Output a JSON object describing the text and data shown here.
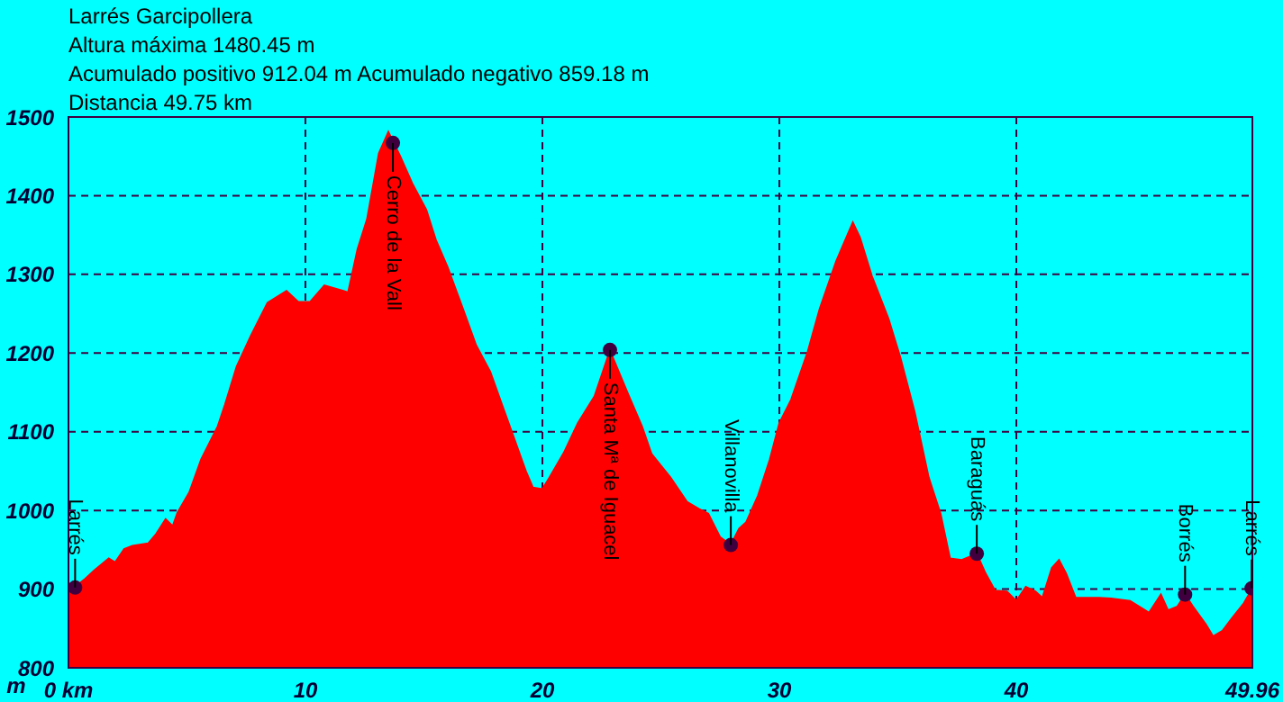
{
  "chart_data": {
    "type": "area",
    "title": "Larrés Garcipollera",
    "annotations": [
      "Altura máxima 1480.45 m",
      "Acumulado positivo 912.04 m Acumulado negativo 859.18 m",
      "Distancia 49.75 km",
      {
        "text": "Larrés",
        "x": 0.28,
        "y": 902
      },
      {
        "text": "Cerro de la Vall",
        "x": 13.69,
        "y": 1467
      },
      {
        "text": "Santa Mª de Iguacel",
        "x": 22.85,
        "y": 1204
      },
      {
        "text": "Villanovilla",
        "x": 27.95,
        "y": 956
      },
      {
        "text": "Baraguás",
        "x": 38.33,
        "y": 945
      },
      {
        "text": "Borrés",
        "x": 47.12,
        "y": 893
      },
      {
        "text": "Larrés",
        "x": 49.93,
        "y": 901
      }
    ],
    "ylabel": "m",
    "xlim": [
      0,
      49.96
    ],
    "ylim": [
      800,
      1500
    ],
    "xticks": [
      {
        "value": 0,
        "label": "0 km"
      },
      10,
      20,
      30,
      40,
      49.96
    ],
    "yticks": [
      800,
      900,
      1000,
      1100,
      1200,
      1300,
      1400,
      1500
    ],
    "grid": true,
    "series": [
      {
        "color": "#ff0000",
        "x": [
          0,
          0.28,
          0.7,
          1.1,
          1.7,
          1.97,
          2.35,
          2.7,
          3.36,
          3.7,
          4.1,
          4.4,
          4.6,
          5.1,
          5.6,
          6.3,
          6.6,
          7.1,
          7.7,
          8.4,
          9.2,
          9.7,
          10.2,
          10.8,
          11.6,
          11.8,
          12.2,
          12.6,
          13.1,
          13.5,
          14.0,
          14.5,
          15.1,
          15.5,
          16.0,
          16.6,
          17.2,
          17.8,
          18.3,
          18.8,
          19.3,
          19.6,
          20.0,
          20.3,
          20.9,
          21.5,
          22.2,
          22.85,
          23.6,
          24.2,
          24.6,
          25.4,
          26.1,
          26.6,
          27.0,
          27.5,
          27.95,
          28.3,
          28.6,
          29.1,
          29.6,
          30.0,
          30.5,
          31.2,
          31.7,
          32.4,
          33.1,
          33.4,
          33.9,
          34.6,
          35.1,
          35.7,
          36.3,
          36.8,
          37.2,
          37.7,
          38.33,
          38.7,
          39.1,
          39.6,
          40.0,
          40.4,
          40.8,
          41.1,
          41.5,
          41.8,
          42.1,
          42.5,
          43.5,
          44.0,
          44.8,
          45.6,
          46.1,
          46.4,
          46.8,
          47.12,
          47.45,
          48.0,
          48.3,
          48.7,
          49.1,
          49.6,
          49.96
        ],
        "values": [
          901,
          903,
          913,
          924,
          939,
          934,
          951,
          955,
          958,
          970,
          989,
          980,
          997,
          1023,
          1065,
          1107,
          1134,
          1183,
          1222,
          1264,
          1279,
          1265,
          1265,
          1286,
          1279,
          1277,
          1332,
          1370,
          1454,
          1481,
          1450,
          1416,
          1382,
          1344,
          1309,
          1260,
          1210,
          1176,
          1134,
          1092,
          1050,
          1029,
          1027,
          1042,
          1073,
          1111,
          1145,
          1203,
          1149,
          1107,
          1072,
          1042,
          1011,
          1002,
          996,
          966,
          956,
          977,
          985,
          1019,
          1065,
          1111,
          1141,
          1202,
          1256,
          1317,
          1366,
          1347,
          1298,
          1244,
          1195,
          1126,
          1042,
          996,
          939,
          937,
          945,
          920,
          898,
          897,
          885,
          903,
          897,
          889,
          927,
          937,
          920,
          889,
          889,
          888,
          885,
          870,
          893,
          873,
          878,
          893,
          878,
          855,
          840,
          847,
          863,
          882,
          901
        ]
      },
      {
        "type": "scatter",
        "color": "#400040",
        "marker": "circle",
        "x": [
          0.28,
          13.69,
          22.85,
          27.95,
          38.33,
          47.12,
          49.93
        ],
        "values": [
          902,
          1467,
          1204,
          956,
          945,
          893,
          901
        ]
      }
    ]
  }
}
